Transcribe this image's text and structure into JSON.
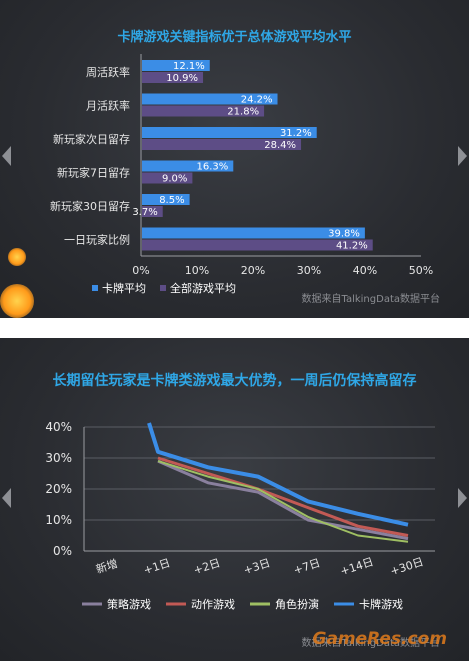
{
  "panel1": {
    "title": "卡牌游戏关键指标优于总体游戏平均水平",
    "source": "数据来自TalkingData数据平台"
  },
  "panel2": {
    "title": "长期留住玩家是卡牌类游戏最大优势，一周后仍保持高留存",
    "source": "数据来自TalkingData数据平台",
    "watermark": "GameRes.com"
  },
  "colors": {
    "card": "#3b8de6",
    "all": "#5d4d86",
    "strategy": "#8a809e",
    "action": "#c25a55",
    "roleplay": "#9fbf63",
    "title": "#2fa7e6"
  },
  "chart_data": [
    {
      "type": "bar",
      "orientation": "horizontal",
      "title": "卡牌游戏关键指标优于总体游戏平均水平",
      "categories": [
        "周活跃率",
        "月活跃率",
        "新玩家次日留存",
        "新玩家7日留存",
        "新玩家30日留存",
        "一日玩家比例"
      ],
      "series": [
        {
          "name": "卡牌平均",
          "values": [
            12.1,
            24.2,
            31.2,
            16.3,
            8.5,
            39.8
          ],
          "labels": [
            "12.1%",
            "24.2%",
            "31.2%",
            "16.3%",
            "8.5%",
            "39.8%"
          ]
        },
        {
          "name": "全部游戏平均",
          "values": [
            10.9,
            21.8,
            28.4,
            9.0,
            3.7,
            41.2
          ],
          "labels": [
            "10.9%",
            "21.8%",
            "28.4%",
            "9.0%",
            "3.7%",
            "41.2%"
          ]
        }
      ],
      "xlim": [
        0,
        50
      ],
      "xticks": [
        "0%",
        "10%",
        "20%",
        "30%",
        "40%",
        "50%"
      ],
      "legend": "bottom-left"
    },
    {
      "type": "line",
      "title": "长期留住玩家是卡牌类游戏最大优势，一周后仍保持高留存",
      "categories": [
        "新增",
        "+1日",
        "+2日",
        "+3日",
        "+7日",
        "+14日",
        "+30日"
      ],
      "series": [
        {
          "name": "策略游戏",
          "values": [
            null,
            29,
            22,
            19,
            10,
            7,
            4
          ]
        },
        {
          "name": "动作游戏",
          "values": [
            null,
            30,
            25,
            20,
            14,
            8,
            5
          ]
        },
        {
          "name": "角色扮演",
          "values": [
            null,
            29,
            24,
            20,
            11,
            5,
            3
          ]
        },
        {
          "name": "卡牌游戏",
          "values": [
            null,
            32,
            27,
            24,
            16,
            12,
            8.5
          ]
        }
      ],
      "ylim": [
        0,
        40
      ],
      "yticks": [
        "0%",
        "10%",
        "20%",
        "30%",
        "40%"
      ],
      "grid": true,
      "legend": "bottom"
    }
  ]
}
